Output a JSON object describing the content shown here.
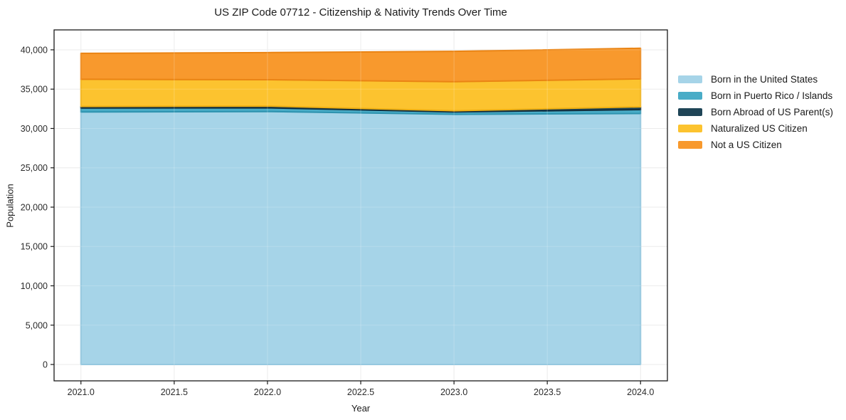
{
  "chart_data": {
    "type": "area",
    "stacked": true,
    "title": "US ZIP Code 07712 - Citizenship & Nativity Trends Over Time",
    "xlabel": "Year",
    "ylabel": "Population",
    "x": [
      2021,
      2022,
      2023,
      2024
    ],
    "series": [
      {
        "name": "Born in the United States",
        "color": "#A6D4E8",
        "edge": "#8CC3DC",
        "values": [
          32100,
          32150,
          31800,
          31900
        ]
      },
      {
        "name": "Born in Puerto Rico / Islands",
        "color": "#49ACC7",
        "edge": "#2E93AF",
        "values": [
          500,
          470,
          300,
          500
        ]
      },
      {
        "name": "Born Abroad of US Parent(s)",
        "color": "#1F4557",
        "edge": "#142F3D",
        "values": [
          200,
          230,
          150,
          350
        ]
      },
      {
        "name": "Naturalized US Citizen",
        "color": "#FCC32F",
        "edge": "#EFAF12",
        "values": [
          3450,
          3350,
          3700,
          3550
        ]
      },
      {
        "name": "Not a US Citizen",
        "color": "#F8992D",
        "edge": "#EA8414",
        "values": [
          3300,
          3450,
          3850,
          3900
        ]
      }
    ],
    "xticks": {
      "values": [
        2021.0,
        2021.5,
        2022.0,
        2022.5,
        2023.0,
        2023.5,
        2024.0
      ],
      "labels": [
        "2021.0",
        "2021.5",
        "2022.0",
        "2022.5",
        "2023.0",
        "2023.5",
        "2024.0"
      ]
    },
    "yticks": {
      "values": [
        0,
        5000,
        10000,
        15000,
        20000,
        25000,
        30000,
        35000,
        40000
      ],
      "labels": [
        "0",
        "5,000",
        "10,000",
        "15,000",
        "20,000",
        "25,000",
        "30,000",
        "35,000",
        "40,000"
      ]
    },
    "xlim": [
      2020.856,
      2024.144
    ],
    "ylim": [
      -2080,
      42530
    ],
    "grid": true,
    "grid_color": "#e7e7e7",
    "spine_color": "#1a1a1a",
    "legend_position": "right"
  }
}
